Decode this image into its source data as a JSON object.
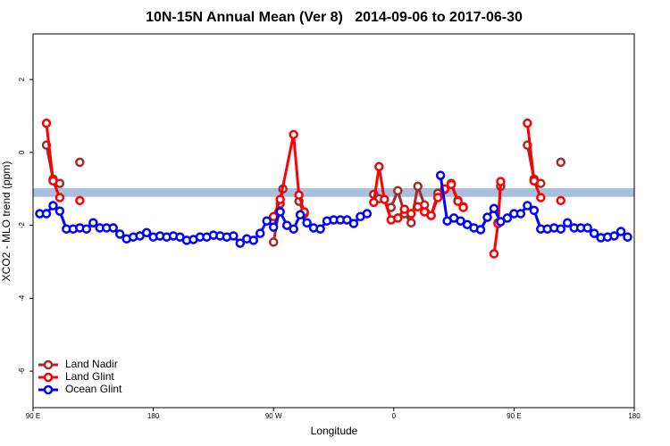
{
  "chart_data": {
    "type": "line",
    "title": "10N-15N Annual Mean (Ver 8)   2014-09-06 to 2017-06-30",
    "x_label": "Longitude",
    "y_label": "XCO2 - MLO trend (ppm)",
    "xlim": [
      90,
      540
    ],
    "xticks": [
      {
        "value": 90,
        "label": "90 E"
      },
      180,
      {
        "value": 270,
        "label": "90 W"
      },
      {
        "value": 360,
        "label": "0"
      },
      {
        "value": 450,
        "label": "90 E"
      },
      {
        "value": 540,
        "label": "180"
      }
    ],
    "ylim": [
      -7,
      3.25
    ],
    "yticks": [
      -6,
      -4,
      -2,
      0,
      2
    ],
    "band": {
      "ymin": -1.22,
      "ymax": -0.98,
      "color": "#a8bfe0"
    },
    "legend": "bottom left",
    "series": [
      {
        "name": "Land Nadir",
        "color": "#a52a2a",
        "x": [
          100,
          105,
          110,
          null,
          125,
          null,
          270,
          275,
          277,
          null,
          289,
          293,
          null,
          345,
          349,
          358,
          363,
          368,
          373,
          378,
          383,
          388,
          393,
          398,
          403,
          408,
          412,
          null,
          438,
          440,
          null,
          460,
          465,
          470,
          null,
          485
        ],
        "values": [
          0.2,
          -0.73,
          -0.85,
          null,
          -0.27,
          null,
          -2.46,
          -1.41,
          -1.0,
          null,
          -1.34,
          -1.68,
          null,
          -1.15,
          -1.27,
          -1.51,
          -1.05,
          -1.68,
          -1.93,
          -0.93,
          -1.44,
          -1.73,
          -1.12,
          -1.02,
          -0.85,
          -1.32,
          -1.49,
          null,
          -1.93,
          -0.93,
          null,
          0.2,
          -0.73,
          -0.85,
          null,
          -0.27
        ]
      },
      {
        "name": "Land Glint",
        "color": "#ff0000",
        "x": [
          100,
          105,
          110,
          null,
          125,
          null,
          270,
          275,
          285,
          289,
          293,
          null,
          345,
          349,
          353,
          358,
          363,
          368,
          373,
          378,
          383,
          388,
          393,
          398,
          403,
          408,
          412,
          null,
          435,
          438,
          440,
          null,
          460,
          465,
          470,
          null,
          485
        ],
        "values": [
          0.8,
          -0.78,
          -1.24,
          null,
          -1.32,
          null,
          -1.76,
          -1.29,
          0.49,
          -1.17,
          -1.63,
          null,
          -1.37,
          -0.39,
          -1.29,
          -1.85,
          -1.8,
          -1.56,
          -1.68,
          -1.49,
          -1.63,
          -1.73,
          -1.24,
          -1.0,
          -0.88,
          -1.34,
          -1.51,
          null,
          -2.78,
          -1.95,
          -0.8,
          null,
          0.8,
          -0.78,
          -1.24,
          null,
          -1.32
        ]
      },
      {
        "name": "Ocean Glint",
        "color": "#0000ff",
        "x": [
          95,
          100,
          105,
          110,
          115,
          120,
          125,
          130,
          135,
          140,
          145,
          150,
          155,
          160,
          165,
          170,
          175,
          180,
          185,
          190,
          195,
          200,
          205,
          210,
          215,
          220,
          225,
          230,
          235,
          240,
          245,
          250,
          255,
          260,
          265,
          270,
          275,
          280,
          285,
          290,
          295,
          300,
          305,
          310,
          315,
          320,
          325,
          330,
          335,
          340,
          345,
          350,
          355,
          360,
          365,
          370,
          375,
          380,
          385,
          390,
          395,
          400,
          405,
          410,
          415,
          420,
          425,
          430,
          435,
          440,
          445,
          450,
          455,
          460,
          465,
          470,
          475,
          480,
          485,
          490,
          495,
          500,
          505,
          510,
          515,
          520,
          525,
          530,
          535
        ],
        "values": [
          -1.68,
          -1.68,
          -1.46,
          -1.61,
          -2.1,
          -2.1,
          -2.07,
          -2.1,
          -1.93,
          -2.07,
          -2.07,
          -2.07,
          -2.24,
          -2.37,
          -2.32,
          -2.29,
          -2.2,
          -2.32,
          -2.29,
          -2.32,
          -2.29,
          -2.32,
          -2.41,
          -2.39,
          -2.32,
          -2.32,
          -2.27,
          -2.29,
          -2.32,
          -2.29,
          -2.49,
          -2.37,
          -2.41,
          -2.22,
          -1.88,
          -2.05,
          -1.63,
          -2.0,
          -2.1,
          -1.71,
          -1.93,
          -2.07,
          -2.1,
          -1.88,
          -1.85,
          -1.85,
          -1.85,
          -1.95,
          -1.76,
          -1.68,
          null,
          null,
          null,
          null,
          null,
          null,
          null,
          null,
          null,
          null,
          -0.63,
          -1.88,
          -1.8,
          -1.88,
          -1.98,
          -2.07,
          -2.12,
          -1.78,
          -1.54,
          -1.9,
          -1.8,
          -1.68,
          -1.68,
          -1.46,
          -1.59,
          -2.1,
          -2.1,
          -2.07,
          -2.1,
          -1.93,
          -2.07,
          -2.07,
          -2.07,
          -2.22,
          -2.34,
          -2.32,
          -2.29,
          -2.17,
          -2.32
        ]
      }
    ]
  }
}
